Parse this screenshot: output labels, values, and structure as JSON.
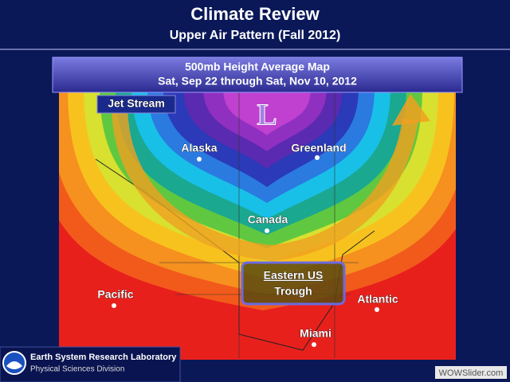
{
  "header": {
    "title": "Climate Review",
    "subtitle": "Upper Air Pattern (Fall 2012)"
  },
  "map": {
    "heading": "500mb Height Average Map",
    "period": "Sat, Sep 22 through Sat, Nov 10, 2012",
    "labels": {
      "jet_stream": "Jet Stream",
      "low": "L",
      "alaska": "Alaska",
      "greenland": "Greenland",
      "canada": "Canada",
      "trough_line1": "Eastern US",
      "trough_line2": "Trough",
      "pacific": "Pacific",
      "atlantic": "Atlantic",
      "miami": "Miami"
    }
  },
  "footer": {
    "lab": "Earth System Research Laboratory",
    "division": "Physical Sciences Division",
    "watermark": "WOWSlider.com"
  }
}
